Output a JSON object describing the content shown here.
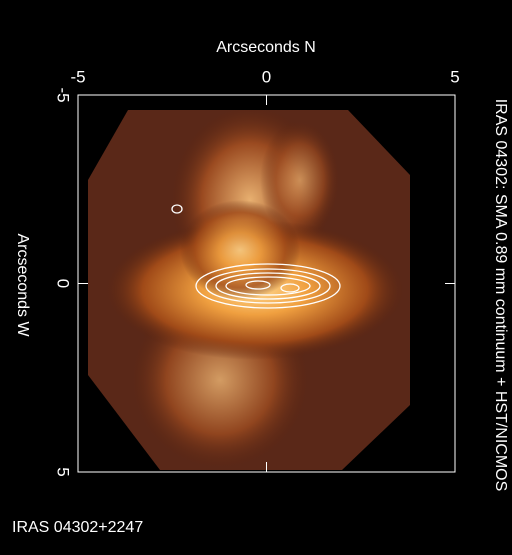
{
  "chart_data": {
    "type": "image",
    "title": "IRAS 04302: SMA 0.89 mm continuum + HST/NICMOS",
    "x_label": "Arcseconds N",
    "y_label": "Arcseconds W",
    "annotation": "IRAS 04302+2247",
    "xlim": [
      -5,
      5
    ],
    "ylim": [
      -5,
      5
    ],
    "xticks": [
      -5,
      0,
      5
    ],
    "yticks": [
      -5,
      0,
      5
    ],
    "y_inverted": true
  }
}
